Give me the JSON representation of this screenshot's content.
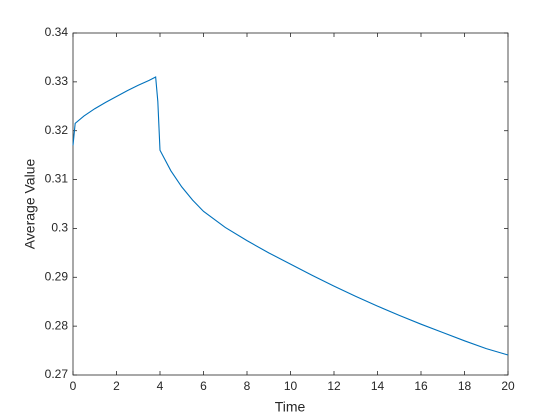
{
  "chart_data": {
    "type": "line",
    "xlabel": "Time",
    "ylabel": "Average Value",
    "x": [
      0,
      0.1,
      0.5,
      1,
      1.5,
      2,
      2.5,
      3,
      3.5,
      3.8,
      3.9,
      4,
      4.5,
      5,
      5.5,
      6,
      7,
      8,
      9,
      10,
      11,
      12,
      13,
      14,
      15,
      16,
      17,
      18,
      19,
      20
    ],
    "values": [
      0.317,
      0.3215,
      0.323,
      0.3245,
      0.3258,
      0.327,
      0.3282,
      0.3293,
      0.3303,
      0.331,
      0.326,
      0.316,
      0.3118,
      0.3085,
      0.3058,
      0.3035,
      0.3002,
      0.2975,
      0.295,
      0.2927,
      0.2904,
      0.2882,
      0.2861,
      0.2841,
      0.2822,
      0.2804,
      0.2787,
      0.277,
      0.2754,
      0.2741
    ],
    "color": "#0072bd",
    "xlim": [
      0,
      20
    ],
    "xticks": [
      0,
      2,
      4,
      6,
      8,
      10,
      12,
      14,
      16,
      18,
      20
    ],
    "ylim": [
      0.27,
      0.34
    ],
    "yticks": [
      0.27,
      0.28,
      0.29,
      0.3,
      0.31,
      0.32,
      0.33,
      0.34
    ],
    "grid": false
  }
}
